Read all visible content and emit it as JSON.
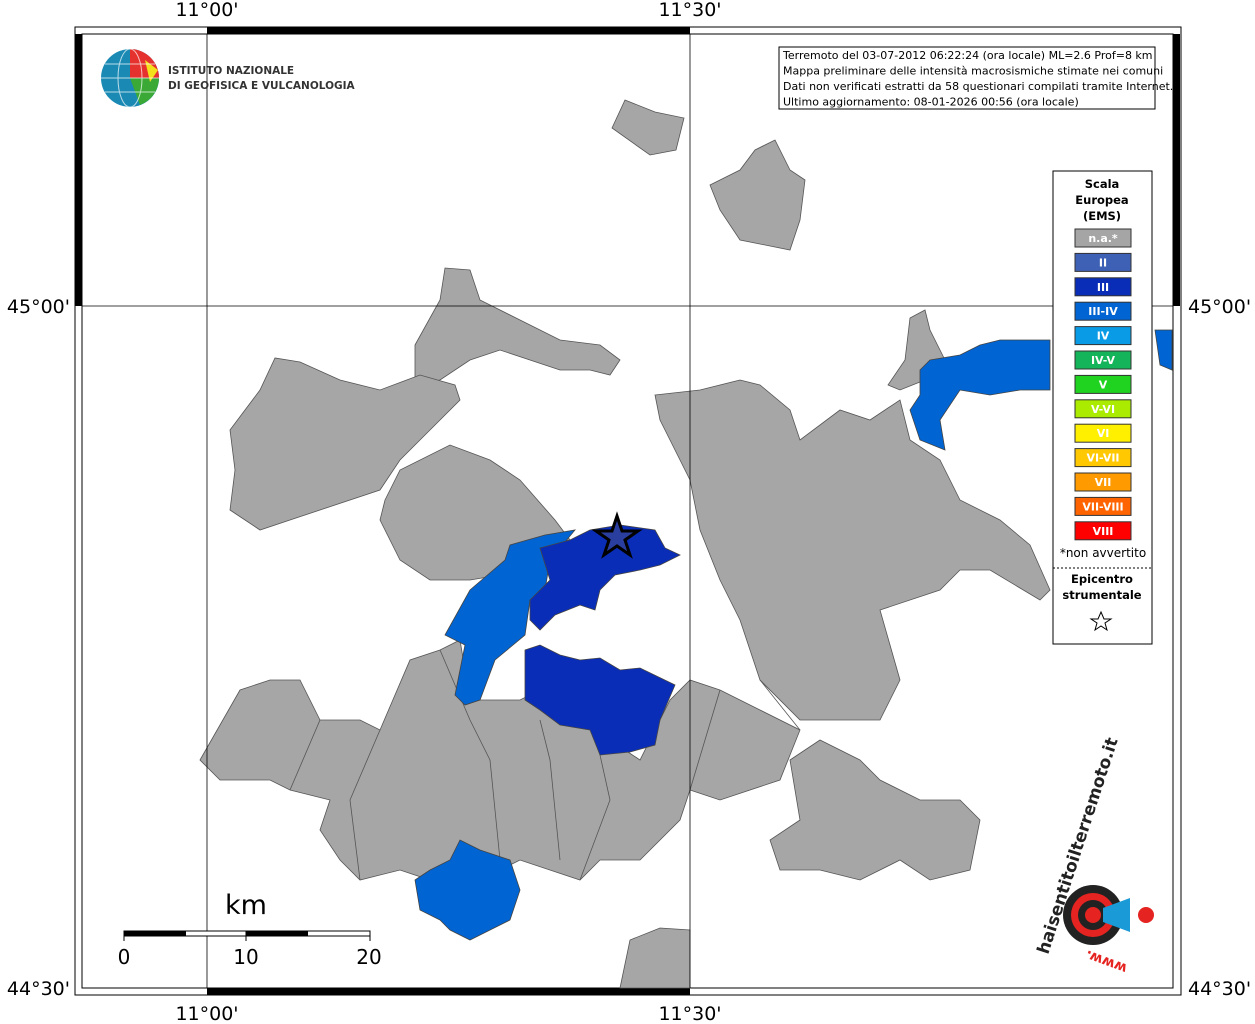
{
  "coordinates": {
    "longitudes": [
      "11°00'",
      "11°30'"
    ],
    "latitudes": [
      "45°00'",
      "44°30'"
    ]
  },
  "logo": {
    "line1": "ISTITUTO NAZIONALE",
    "line2": "DI GEOFISICA E VULCANOLOGIA"
  },
  "info_box": {
    "lines": [
      "Terremoto del 03-07-2012 06:22:24 (ora locale) ML=2.6 Prof=8 km",
      "Mappa preliminare delle intensità macrosismiche stimate nei comuni",
      "Dati non verificati estratti da 58 questionari compilati tramite Internet.",
      "Ultimo aggiornamento: 08-01-2026 00:56 (ora locale)"
    ]
  },
  "legend": {
    "title": [
      "Scala",
      "Europea",
      "(EMS)"
    ],
    "items": [
      {
        "label": "n.a.*",
        "color": "#a5a5a5"
      },
      {
        "label": "II",
        "color": "#3f61b5"
      },
      {
        "label": "III",
        "color": "#0a2db8"
      },
      {
        "label": "III-IV",
        "color": "#0064d2"
      },
      {
        "label": "IV",
        "color": "#0a9be6"
      },
      {
        "label": "IV-V",
        "color": "#14b45a"
      },
      {
        "label": "V",
        "color": "#21d321"
      },
      {
        "label": "V-VI",
        "color": "#aaeb00"
      },
      {
        "label": "VI",
        "color": "#fff000"
      },
      {
        "label": "VI-VII",
        "color": "#ffc800"
      },
      {
        "label": "VII",
        "color": "#ff9b00"
      },
      {
        "label": "VII-VIII",
        "color": "#ff6400"
      },
      {
        "label": "VIII",
        "color": "#ff0000"
      }
    ],
    "footnote": "*non avvertito",
    "epicenter": [
      "Epicentro",
      "strumentale"
    ]
  },
  "scale_bar": {
    "unit": "km",
    "labels": [
      "0",
      "10",
      "20"
    ]
  },
  "site_logo": {
    "prefix": "www.",
    "url": "haisentitoilterremoto.it"
  }
}
